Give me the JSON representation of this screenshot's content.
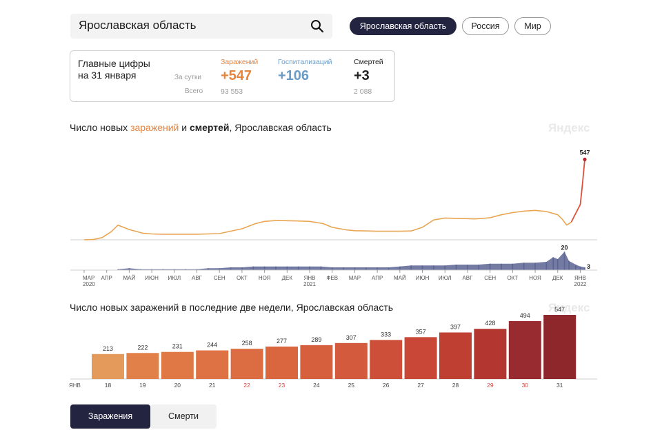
{
  "search": {
    "value": "Ярославская область"
  },
  "regions": [
    {
      "label": "Ярославская область",
      "active": true
    },
    {
      "label": "Россия",
      "active": false
    },
    {
      "label": "Мир",
      "active": false
    }
  ],
  "stats": {
    "title_line1": "Главные цифры",
    "title_line2": "на 31 января",
    "row_day": "За сутки",
    "row_total": "Всего",
    "infections": {
      "label": "Заражений",
      "day": "+547",
      "total": "93 553",
      "color": "#e8833a"
    },
    "hospital": {
      "label": "Госпитализаций",
      "day": "+106",
      "total": "",
      "color": "#6a9bc6"
    },
    "deaths": {
      "label": "Смертей",
      "day": "+3",
      "total": "2 088",
      "color": "#222222"
    }
  },
  "chart1_title": {
    "prefix": "Число новых ",
    "infections": "заражений",
    "mid": " и ",
    "deaths": "смертей",
    "suffix": ", Ярославская область"
  },
  "chart2_title": "Число новых заражений в последние две недели, Ярославская область",
  "watermark": "Яндекс",
  "tabs": {
    "infections": "Заражения",
    "deaths": "Смерти"
  },
  "chart_data": [
    {
      "type": "line",
      "title": "Число новых заражений и смертей, Ярославская область",
      "series": [
        {
          "name": "заражений",
          "color": "#e8a552",
          "x": [
            0.0,
            0.4,
            0.8,
            1.2,
            1.5,
            2.0,
            2.6,
            3.0,
            3.5,
            4.0,
            5.0,
            6.0,
            7.0,
            7.6,
            8.0,
            8.6,
            9.0,
            9.5,
            10.0,
            10.6,
            11.0,
            11.6,
            12.0,
            12.6,
            13.0,
            13.5,
            14.0,
            14.5,
            15.0,
            15.5,
            16.0,
            16.5,
            17.0,
            17.3,
            17.6,
            18.0,
            18.5,
            19.0,
            19.5,
            20.0,
            20.5,
            21.0,
            21.2,
            21.4,
            21.6,
            21.8,
            22.0,
            22.1,
            22.2
          ],
          "y": [
            0,
            2,
            15,
            55,
            100,
            70,
            45,
            40,
            38,
            38,
            38,
            42,
            75,
            110,
            125,
            132,
            130,
            128,
            125,
            110,
            85,
            68,
            62,
            60,
            58,
            58,
            58,
            60,
            85,
            135,
            148,
            146,
            144,
            142,
            145,
            150,
            170,
            185,
            195,
            200,
            192,
            170,
            140,
            100,
            120,
            180,
            240,
            380,
            547
          ],
          "annotation": {
            "value": "547"
          }
        },
        {
          "name": "смертей",
          "color": "#5b6493",
          "type": "bar",
          "x": [
            1.5,
            2.0,
            2.5,
            3.0,
            3.5,
            4.0,
            4.5,
            5.0,
            5.5,
            6.0,
            6.5,
            7.0,
            7.5,
            8.0,
            8.5,
            9.0,
            9.5,
            10.0,
            10.5,
            11.0,
            11.5,
            12.0,
            12.5,
            13.0,
            13.5,
            14.0,
            14.5,
            15.0,
            15.5,
            16.0,
            16.5,
            17.0,
            17.5,
            18.0,
            18.5,
            19.0,
            19.5,
            20.0,
            20.5,
            20.8,
            21.0,
            21.3,
            21.5,
            21.8,
            22.0,
            22.2
          ],
          "y": [
            1,
            2,
            1,
            1,
            1,
            1,
            1,
            1,
            2,
            2,
            3,
            3,
            4,
            4,
            4,
            4,
            4,
            4,
            4,
            3,
            3,
            3,
            3,
            3,
            3,
            4,
            5,
            5,
            5,
            5,
            6,
            6,
            6,
            7,
            7,
            7,
            8,
            8,
            9,
            14,
            12,
            20,
            10,
            6,
            4,
            3
          ],
          "annotations": [
            "20",
            "3"
          ]
        }
      ],
      "x_ticks": [
        "МАР",
        "АПР",
        "МАЙ",
        "ИЮН",
        "ИЮЛ",
        "АВГ",
        "СЕН",
        "ОКТ",
        "НОЯ",
        "ДЕК",
        "ЯНВ",
        "ФЕВ",
        "МАР",
        "АПР",
        "МАЙ",
        "ИЮН",
        "ИЮЛ",
        "АВГ",
        "СЕН",
        "ОКТ",
        "НОЯ",
        "ДЕК",
        "ЯНВ"
      ],
      "year_labels": [
        "2020",
        "2021",
        "2022"
      ],
      "xlim": [
        0,
        22.2
      ],
      "ylim": [
        0,
        600
      ],
      "ylim_deaths": [
        0,
        24
      ],
      "grid": false
    },
    {
      "type": "bar",
      "title": "Число новых заражений в последние две недели, Ярославская область",
      "month_label": "ЯНВ",
      "categories": [
        "18",
        "19",
        "20",
        "21",
        "22",
        "23",
        "24",
        "25",
        "26",
        "27",
        "28",
        "29",
        "30",
        "31"
      ],
      "values": [
        213,
        222,
        231,
        244,
        258,
        277,
        289,
        307,
        333,
        357,
        397,
        428,
        494,
        547
      ],
      "value_labels": [
        "213",
        "222",
        "231",
        "244",
        "258",
        "277",
        "289",
        "307",
        "333",
        "357",
        "397",
        "428",
        "494",
        "547"
      ],
      "bar_colors": [
        "#e39a5a",
        "#e2804a",
        "#e07845",
        "#de7244",
        "#dc6c42",
        "#da6640",
        "#d6603e",
        "#d35a3c",
        "#ce4f39",
        "#c84736",
        "#c03f33",
        "#b43630",
        "#972b2f",
        "#8e272c"
      ],
      "weekend_categories": [
        "22",
        "23",
        "29",
        "30"
      ],
      "weekend_color": "#d9403b",
      "ylim": [
        0,
        600
      ]
    }
  ]
}
